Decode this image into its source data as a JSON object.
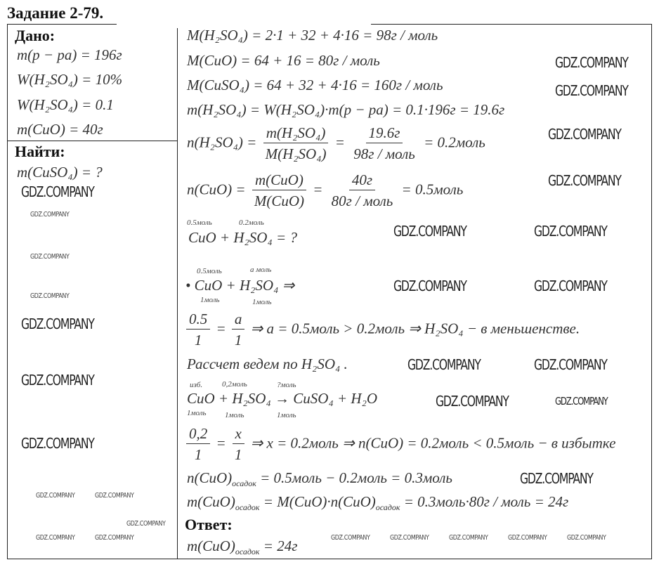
{
  "title": "Задание 2-79.",
  "given": {
    "heading": "Дано:",
    "items": [
      "m(p − pa) = 196г",
      "W(H₂SO₄) = 10%",
      "W(H₂SO₄) = 0.1",
      "m(CuO) = 40г"
    ]
  },
  "find": {
    "heading": "Найти:",
    "items": [
      "m(CuSO₄) = ?"
    ]
  },
  "solution": {
    "l1": "M(H₂SO₄) = 2·1 + 32 + 4·16 = 98г / моль",
    "l2": "M(CuO) = 64 + 16 = 80г / моль",
    "l3": "M(CuSO₄) = 64 + 32 + 4·16 = 160г / моль",
    "l4": "m(H₂SO₄) = W(H₂SO₄)·m(p − pa) = 0.1·196г = 19.6г",
    "l5": {
      "lhs": "n(H₂SO₄) =",
      "n1": "m(H₂SO₄)",
      "d1": "M(H₂SO₄)",
      "eq": "=",
      "n2": "19.6г",
      "d2": "98г / моль",
      "rhs": "= 0.2моль"
    },
    "l6": {
      "lhs": "n(CuO) =",
      "n1": "m(CuO)",
      "d1": "M(CuO)",
      "eq": "=",
      "n2": "40г",
      "d2": "80г / моль",
      "rhs": "= 0.5моль"
    },
    "r1": {
      "above1": "0.5моль",
      "above2": "0.2моль",
      "eq": "CuO + H₂SO₄ = ?"
    },
    "r2": {
      "above1": "0.5моль",
      "above2": "a моль",
      "eq": "• CuO + H₂SO₄ ⇒",
      "below1": "1моль",
      "below2": "1моль"
    },
    "p1": {
      "n1": "0.5",
      "d1": "1",
      "eq": "=",
      "n2": "a",
      "d2": "1",
      "rhs": "⇒ a = 0.5моль > 0.2моль ⇒ H₂SO₄ − в меньшенстве."
    },
    "calc": "Рассчет ведем по H₂SO₄ .",
    "r3": {
      "above1": "изб.",
      "above2": "0,2моль",
      "above3": "?моль",
      "eq": "CuO + H₂SO₄ → CuSO₄ + H₂O",
      "below1": "1моль",
      "below2": "1моль",
      "below3": "1моль"
    },
    "p2": {
      "n1": "0,2",
      "d1": "1",
      "eq": "=",
      "n2": "x",
      "d2": "1",
      "rhs": "⇒ x = 0.2моль ⇒ n(CuO) = 0.2моль < 0.5моль − в избытке"
    },
    "l7": {
      "a": "n(CuO)",
      "s": "осадок",
      "b": "= 0.5моль − 0.2моль = 0.3моль"
    },
    "l8": {
      "a": "m(CuO)",
      "s": "осадок",
      "b": "= M(CuO)·n(CuO)",
      "s2": "осадок",
      "c": "= 0.3моль·80г / моль = 24г"
    },
    "answer_heading": "Ответ:",
    "answer": {
      "a": "m(CuO)",
      "s": "осадок",
      "b": "= 24г"
    }
  },
  "watermark": "GDZ.COMPANY"
}
